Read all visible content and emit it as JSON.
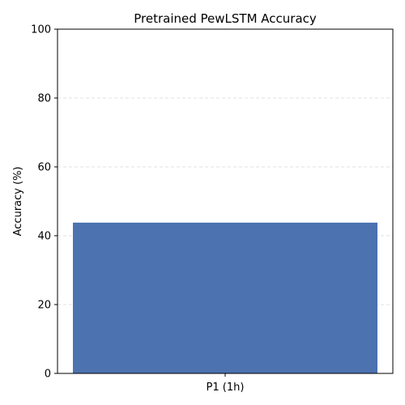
{
  "chart_data": {
    "type": "bar",
    "title": "Pretrained PewLSTM Accuracy",
    "xlabel": "",
    "ylabel": "Accuracy (%)",
    "categories": [
      "P1 (1h)"
    ],
    "values": [
      43.8
    ],
    "ylim": [
      0,
      100
    ],
    "yticks": [
      0,
      20,
      40,
      60,
      80,
      100
    ],
    "grid": true,
    "grid_axis": "y",
    "legend": "none",
    "bar_color": "#4c72b0",
    "grid_color": "#d9d9d9"
  }
}
